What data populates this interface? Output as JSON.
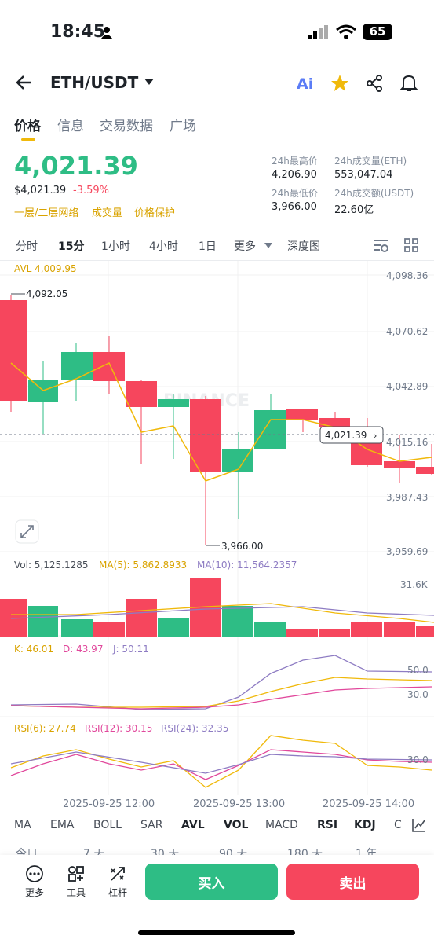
{
  "status": {
    "time": "18:45",
    "battery": "65"
  },
  "header": {
    "pair": "ETH/USDT",
    "ai_label": "Ai"
  },
  "tabs": [
    "价格",
    "信息",
    "交易数据",
    "广场"
  ],
  "price": {
    "last": "4,021.39",
    "usd": "$4,021.39",
    "change": "-3.59%"
  },
  "links": [
    "一层/二层网络",
    "成交量",
    "价格保护"
  ],
  "stats": {
    "high_label": "24h最高价",
    "high": "4,206.90",
    "vol_eth_label": "24h成交量(ETH)",
    "vol_eth": "553,047.04",
    "low_label": "24h最低价",
    "low": "3,966.00",
    "vol_usdt_label": "24h成交额(USDT)",
    "vol_usdt": "22.60亿"
  },
  "timeframes": [
    "分时",
    "15分",
    "1小时",
    "4小时",
    "1日",
    "更多",
    "深度图"
  ],
  "main_chart": {
    "avl": "AVL 4,009.95",
    "y_labels": [
      "4,098.36",
      "4,070.62",
      "4,042.89",
      "4,015.16",
      "3,987.43",
      "3,959.69"
    ],
    "high_marker": "4,092.05",
    "low_marker": "3,966.00",
    "current": "4,021.39",
    "watermark": "BINANCE"
  },
  "volume": {
    "vol": "Vol: 5,125.1285",
    "ma5": "MA(5): 5,862.8933",
    "ma10": "MA(10): 11,564.2357",
    "y_label": "31.6K"
  },
  "kdj": {
    "k": "K: 46.01",
    "d": "D: 43.97",
    "j": "J: 50.11",
    "y1": "50.0",
    "y2": "30.0"
  },
  "rsi": {
    "r6": "RSI(6): 27.74",
    "r12": "RSI(12): 30.15",
    "r24": "RSI(24): 32.35",
    "y1": "30.0"
  },
  "x_labels": [
    "2025-09-25 12:00",
    "2025-09-25 13:00",
    "2025-09-25 14:00"
  ],
  "indicators": [
    "MA",
    "EMA",
    "BOLL",
    "SAR",
    "AVL",
    "VOL",
    "MACD",
    "RSI",
    "KDJ",
    "C"
  ],
  "ranges": [
    "今日",
    "7 天",
    "30 天",
    "90 天",
    "180 天",
    "1 年"
  ],
  "bottom": {
    "more": "更多",
    "tools": "工具",
    "leverage": "杠杆",
    "buy": "买入",
    "sell": "卖出"
  },
  "colors": {
    "up": "#2ebd85",
    "down": "#f6465d",
    "accent": "#f0b90b"
  }
}
